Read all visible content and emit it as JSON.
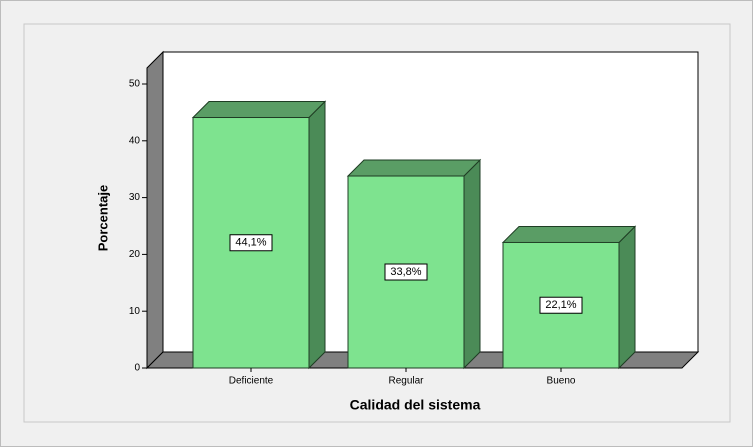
{
  "chart_data": {
    "type": "bar3d",
    "categories": [
      "Deficiente",
      "Regular",
      "Bueno"
    ],
    "values": [
      44.1,
      33.8,
      22.1
    ],
    "value_labels": [
      "44,1%",
      "33,8%",
      "22,1%"
    ],
    "color": "#7ee38f",
    "xlabel": "Calidad del sistema",
    "ylabel": "Porcentaje",
    "ylim": [
      0,
      50
    ],
    "yticks": [
      0,
      10,
      20,
      30,
      40,
      50
    ]
  }
}
